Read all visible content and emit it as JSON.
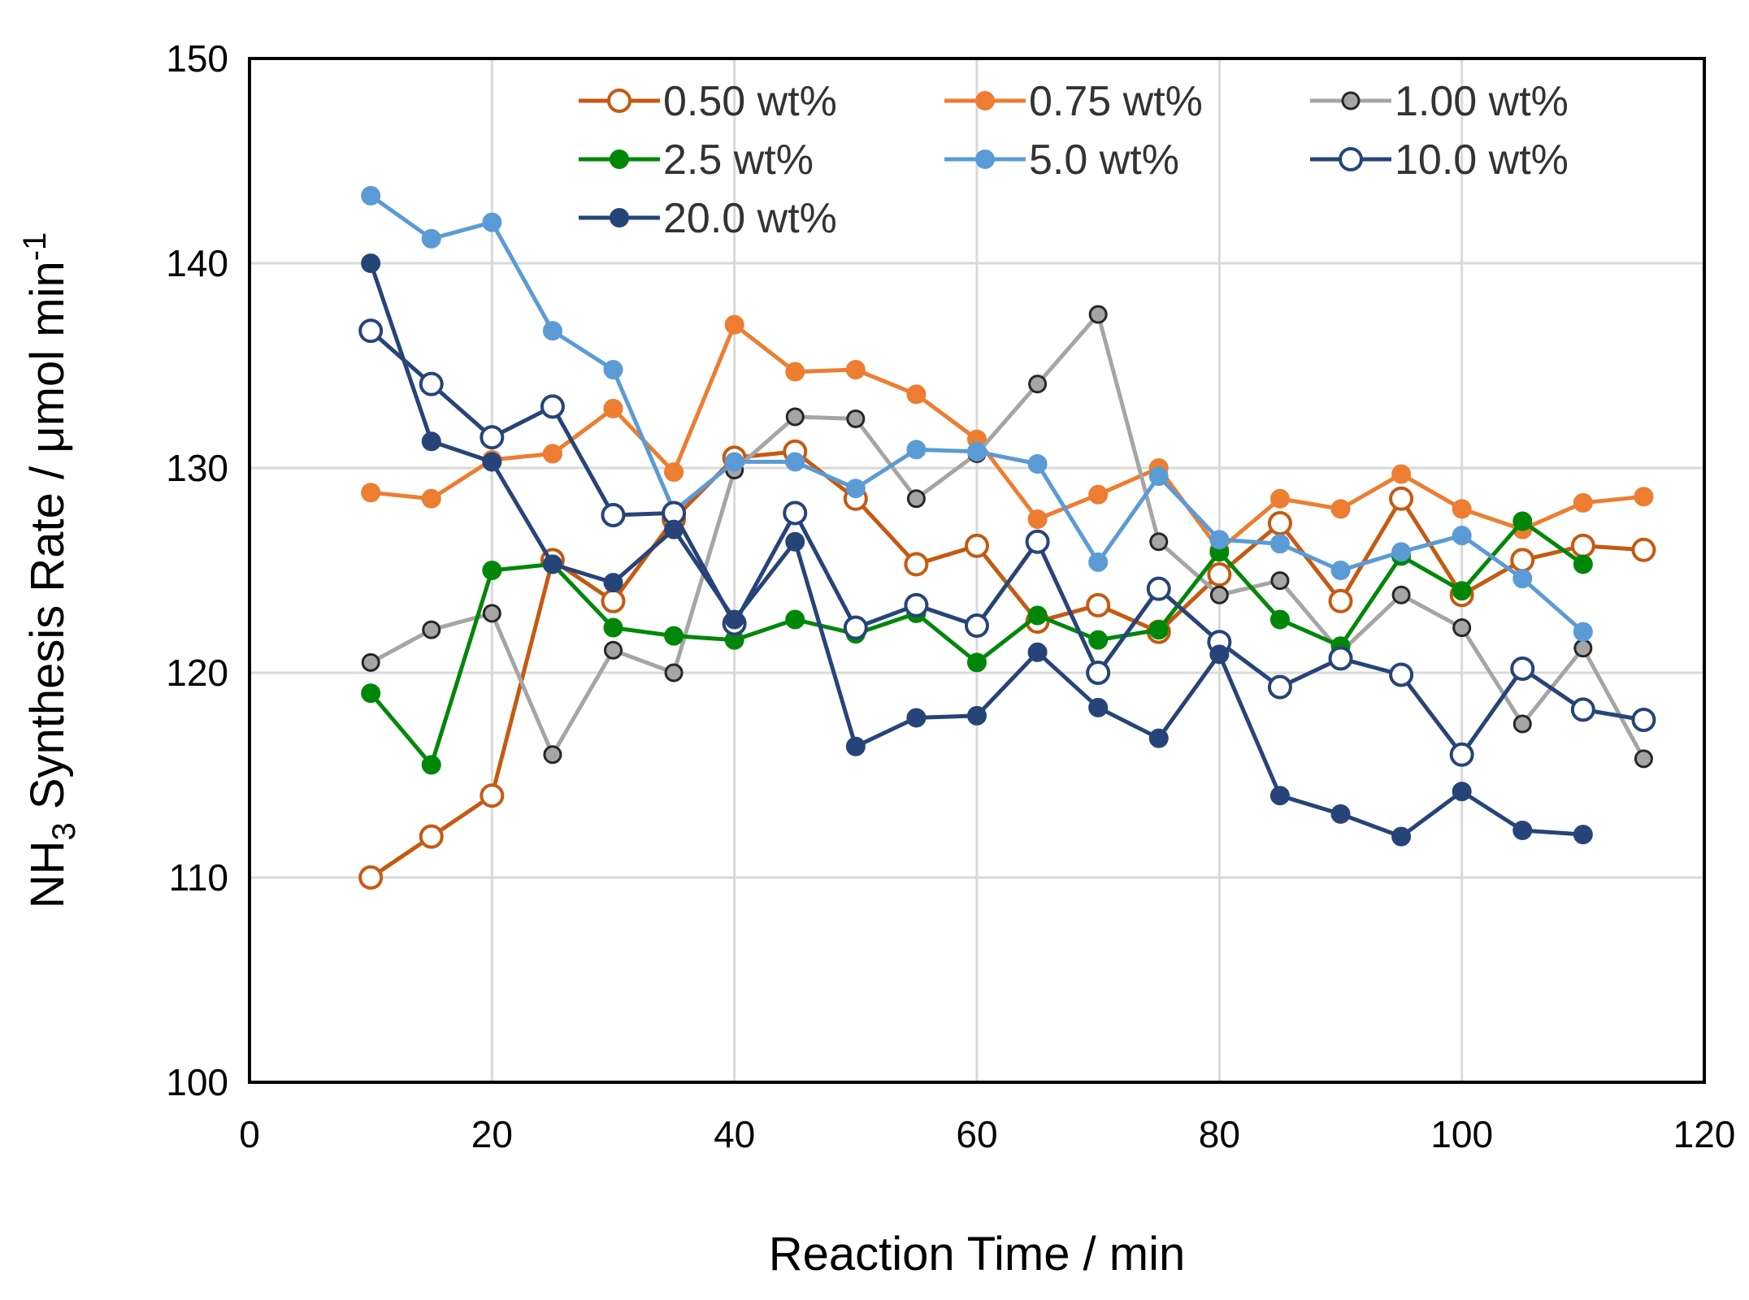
{
  "chart_data": {
    "type": "line",
    "title": "",
    "xlabel": "Reaction Time / min",
    "ylabel_main": "NH",
    "ylabel_sub": "3",
    "ylabel_rest": " Synthesis Rate / μmol min",
    "ylabel_sup": "-1",
    "xlim": [
      0,
      120
    ],
    "ylim": [
      100,
      150
    ],
    "xticks": [
      0,
      20,
      40,
      60,
      80,
      100,
      120
    ],
    "yticks": [
      100,
      110,
      120,
      130,
      140,
      150
    ],
    "grid": true,
    "legend_position": "top-right",
    "x": [
      10,
      15,
      20,
      25,
      30,
      35,
      40,
      45,
      50,
      55,
      60,
      65,
      70,
      75,
      80,
      85,
      90,
      95,
      100,
      105,
      110,
      115
    ],
    "series": [
      {
        "name": "0.50 wt%",
        "color": "#c55a11",
        "marker": "open",
        "values": [
          110.0,
          112.0,
          114.0,
          125.5,
          123.5,
          127.5,
          130.5,
          130.8,
          128.5,
          125.3,
          126.2,
          122.5,
          123.3,
          122.0,
          124.8,
          127.3,
          123.5,
          128.5,
          123.8,
          125.5,
          126.2,
          126.0
        ]
      },
      {
        "name": "0.75 wt%",
        "color": "#ed7d31",
        "marker": "filled",
        "values": [
          128.8,
          128.5,
          130.4,
          130.7,
          132.9,
          129.8,
          137.0,
          134.7,
          134.8,
          133.6,
          131.4,
          127.5,
          128.7,
          130.0,
          126.0,
          128.5,
          128.0,
          129.7,
          128.0,
          127.0,
          128.3,
          128.6
        ]
      },
      {
        "name": "1.00 wt%",
        "color": "#a5a5a5",
        "marker": "gray",
        "values": [
          120.5,
          122.1,
          122.9,
          116.0,
          121.1,
          120.0,
          129.9,
          132.5,
          132.4,
          128.5,
          130.7,
          134.1,
          137.5,
          126.4,
          123.8,
          124.5,
          121.0,
          123.8,
          122.2,
          117.5,
          121.2,
          115.8
        ]
      },
      {
        "name": "2.5 wt%",
        "color": "#00870a",
        "marker": "filled",
        "values": [
          119.0,
          115.5,
          125.0,
          125.3,
          122.2,
          121.8,
          121.6,
          122.6,
          121.9,
          122.9,
          120.5,
          122.8,
          121.6,
          122.1,
          125.9,
          122.6,
          121.3,
          125.7,
          124.0,
          127.4,
          125.3,
          null
        ]
      },
      {
        "name": "5.0 wt%",
        "color": "#5b9bd5",
        "marker": "filled",
        "values": [
          143.3,
          141.2,
          142.0,
          136.7,
          134.8,
          127.9,
          130.3,
          130.3,
          129.0,
          130.9,
          130.8,
          130.2,
          125.4,
          129.6,
          126.5,
          126.3,
          125.0,
          125.9,
          126.7,
          124.6,
          122.0,
          null
        ]
      },
      {
        "name": "10.0 wt%",
        "color": "#264478",
        "marker": "open",
        "values": [
          136.7,
          134.1,
          131.5,
          133.0,
          127.7,
          127.8,
          122.4,
          127.8,
          122.2,
          123.3,
          122.3,
          126.4,
          120.0,
          124.1,
          121.5,
          119.3,
          120.7,
          119.9,
          116.0,
          120.2,
          118.2,
          117.7
        ]
      },
      {
        "name": "20.0 wt%",
        "color": "#264478",
        "marker": "filled",
        "values": [
          140.0,
          131.3,
          130.3,
          125.3,
          124.4,
          127.0,
          122.6,
          126.4,
          116.4,
          117.8,
          117.9,
          121.0,
          118.3,
          116.8,
          120.9,
          114.0,
          113.1,
          112.0,
          114.2,
          112.3,
          112.1,
          null
        ]
      }
    ]
  }
}
